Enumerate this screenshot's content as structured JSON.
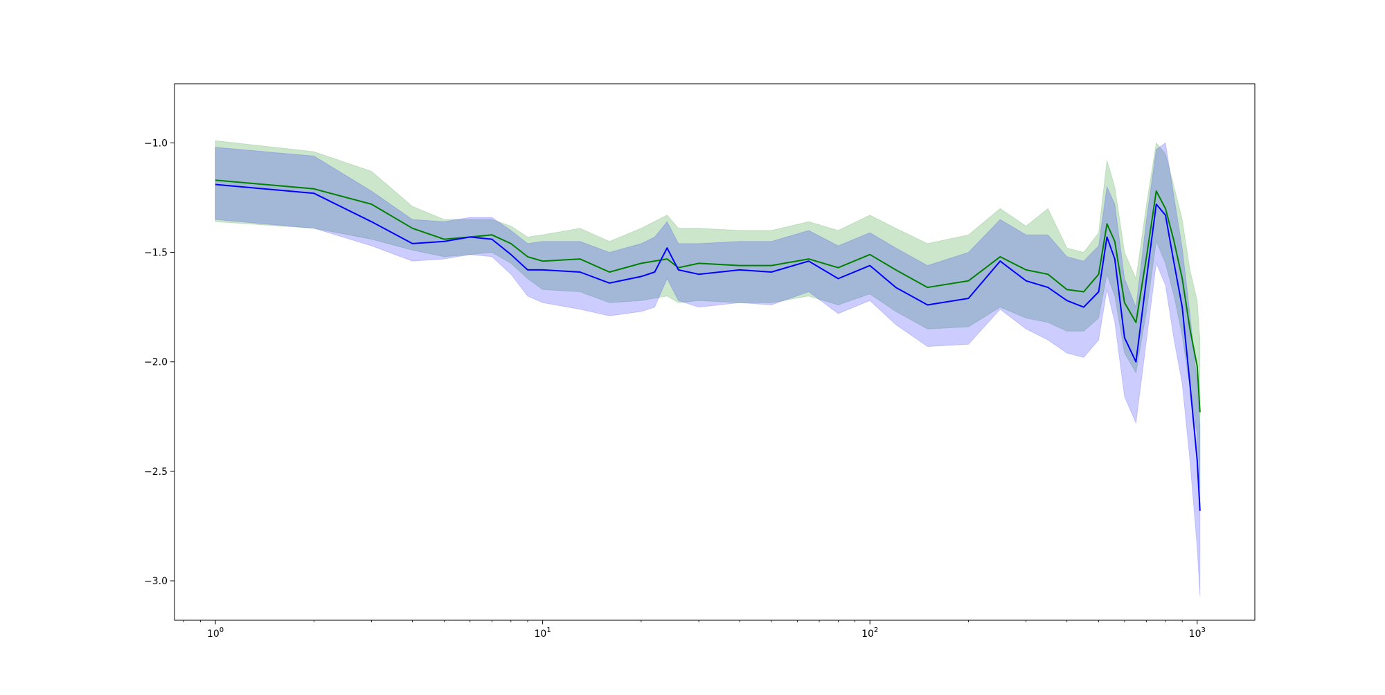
{
  "chart_data": {
    "type": "line",
    "title": "",
    "xlabel": "",
    "ylabel": "",
    "xscale": "log",
    "xlim": [
      0.75,
      1500
    ],
    "ylim": [
      -3.18,
      -0.73
    ],
    "grid": false,
    "x_ticks": [
      {
        "value": 1,
        "base": "10",
        "exp": "0"
      },
      {
        "value": 10,
        "base": "10",
        "exp": "1"
      },
      {
        "value": 100,
        "base": "10",
        "exp": "2"
      },
      {
        "value": 1000,
        "base": "10",
        "exp": "3"
      }
    ],
    "y_ticks": [
      {
        "value": -1.0,
        "label": "−1.0"
      },
      {
        "value": -1.5,
        "label": "−1.5"
      },
      {
        "value": -2.0,
        "label": "−2.0"
      },
      {
        "value": -2.5,
        "label": "−2.5"
      },
      {
        "value": -3.0,
        "label": "−3.0"
      }
    ],
    "colors": {
      "green_line": "#008000",
      "green_band": "#008000",
      "blue_line": "#0000ff",
      "blue_band": "#0000ff",
      "axes": "#000000"
    },
    "series": [
      {
        "color": "#008000",
        "x": [
          1,
          2,
          3,
          4,
          5,
          6,
          7,
          8,
          9,
          10,
          13,
          16,
          20,
          24,
          26,
          30,
          40,
          50,
          65,
          80,
          100,
          120,
          150,
          200,
          250,
          300,
          350,
          400,
          450,
          500,
          530,
          560,
          600,
          650,
          700,
          750,
          800,
          850,
          900,
          950,
          1000,
          1020
        ],
        "values": [
          -1.17,
          -1.21,
          -1.28,
          -1.39,
          -1.44,
          -1.43,
          -1.42,
          -1.46,
          -1.52,
          -1.54,
          -1.53,
          -1.59,
          -1.55,
          -1.53,
          -1.57,
          -1.55,
          -1.56,
          -1.56,
          -1.53,
          -1.57,
          -1.51,
          -1.58,
          -1.66,
          -1.63,
          -1.52,
          -1.58,
          -1.6,
          -1.67,
          -1.68,
          -1.6,
          -1.37,
          -1.45,
          -1.73,
          -1.82,
          -1.52,
          -1.22,
          -1.3,
          -1.45,
          -1.62,
          -1.85,
          -2.02,
          -2.23
        ],
        "upper": [
          -0.99,
          -1.04,
          -1.13,
          -1.29,
          -1.35,
          -1.35,
          -1.35,
          -1.38,
          -1.43,
          -1.42,
          -1.39,
          -1.45,
          -1.39,
          -1.33,
          -1.39,
          -1.39,
          -1.4,
          -1.4,
          -1.36,
          -1.4,
          -1.33,
          -1.39,
          -1.46,
          -1.42,
          -1.3,
          -1.38,
          -1.3,
          -1.48,
          -1.5,
          -1.41,
          -1.08,
          -1.2,
          -1.5,
          -1.62,
          -1.28,
          -1.0,
          -1.05,
          -1.2,
          -1.35,
          -1.58,
          -1.72,
          -1.9
        ],
        "lower": [
          -1.36,
          -1.39,
          -1.44,
          -1.49,
          -1.52,
          -1.51,
          -1.5,
          -1.55,
          -1.62,
          -1.67,
          -1.68,
          -1.73,
          -1.72,
          -1.7,
          -1.73,
          -1.72,
          -1.73,
          -1.73,
          -1.7,
          -1.74,
          -1.69,
          -1.77,
          -1.85,
          -1.84,
          -1.75,
          -1.8,
          -1.82,
          -1.86,
          -1.86,
          -1.8,
          -1.6,
          -1.7,
          -1.96,
          -2.05,
          -1.77,
          -1.45,
          -1.55,
          -1.7,
          -1.88,
          -2.12,
          -2.33,
          -2.58
        ]
      },
      {
        "color": "#0000ff",
        "x": [
          1,
          2,
          3,
          4,
          5,
          6,
          7,
          8,
          9,
          10,
          13,
          16,
          20,
          22,
          24,
          26,
          30,
          40,
          50,
          65,
          80,
          100,
          120,
          150,
          200,
          250,
          300,
          350,
          400,
          450,
          500,
          530,
          560,
          600,
          650,
          700,
          750,
          800,
          850,
          900,
          950,
          1000,
          1020
        ],
        "values": [
          -1.19,
          -1.23,
          -1.36,
          -1.46,
          -1.45,
          -1.43,
          -1.44,
          -1.51,
          -1.58,
          -1.58,
          -1.59,
          -1.64,
          -1.61,
          -1.59,
          -1.48,
          -1.58,
          -1.6,
          -1.58,
          -1.59,
          -1.54,
          -1.62,
          -1.56,
          -1.66,
          -1.74,
          -1.71,
          -1.54,
          -1.63,
          -1.66,
          -1.72,
          -1.75,
          -1.68,
          -1.43,
          -1.53,
          -1.89,
          -2.0,
          -1.62,
          -1.28,
          -1.33,
          -1.55,
          -1.75,
          -2.1,
          -2.45,
          -2.68
        ],
        "upper": [
          -1.02,
          -1.06,
          -1.22,
          -1.35,
          -1.36,
          -1.34,
          -1.34,
          -1.4,
          -1.46,
          -1.45,
          -1.45,
          -1.5,
          -1.46,
          -1.43,
          -1.36,
          -1.46,
          -1.46,
          -1.45,
          -1.45,
          -1.4,
          -1.47,
          -1.41,
          -1.48,
          -1.56,
          -1.5,
          -1.35,
          -1.42,
          -1.42,
          -1.52,
          -1.54,
          -1.47,
          -1.2,
          -1.28,
          -1.62,
          -1.75,
          -1.35,
          -1.03,
          -1.0,
          -1.25,
          -1.48,
          -1.78,
          -2.1,
          -2.3
        ],
        "lower": [
          -1.35,
          -1.39,
          -1.47,
          -1.54,
          -1.53,
          -1.51,
          -1.52,
          -1.6,
          -1.7,
          -1.73,
          -1.76,
          -1.79,
          -1.77,
          -1.75,
          -1.62,
          -1.72,
          -1.75,
          -1.73,
          -1.74,
          -1.68,
          -1.78,
          -1.72,
          -1.83,
          -1.93,
          -1.92,
          -1.76,
          -1.85,
          -1.9,
          -1.96,
          -1.98,
          -1.9,
          -1.67,
          -1.82,
          -2.16,
          -2.28,
          -1.9,
          -1.55,
          -1.65,
          -1.9,
          -2.1,
          -2.45,
          -2.85,
          -3.07
        ]
      }
    ]
  }
}
